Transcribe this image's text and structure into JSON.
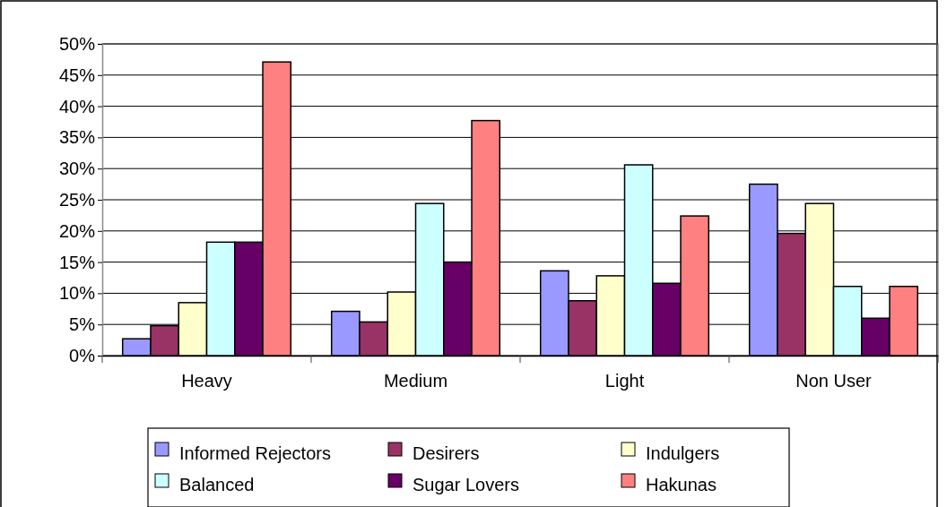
{
  "chart_data": {
    "type": "bar",
    "categories": [
      "Heavy",
      "Medium",
      "Light",
      "Non User"
    ],
    "series": [
      {
        "name": "Informed Rejectors",
        "color": "#9999ff",
        "values": [
          2.7,
          7.1,
          13.6,
          27.5
        ]
      },
      {
        "name": "Desirers",
        "color": "#993366",
        "values": [
          4.8,
          5.4,
          8.8,
          19.6
        ]
      },
      {
        "name": "Indulgers",
        "color": "#ffffcc",
        "values": [
          8.5,
          10.2,
          12.8,
          24.4
        ]
      },
      {
        "name": "Balanced",
        "color": "#ccffff",
        "values": [
          18.2,
          24.4,
          30.6,
          11.1
        ]
      },
      {
        "name": "Sugar Lovers",
        "color": "#660066",
        "values": [
          18.2,
          15.0,
          11.6,
          6.0
        ]
      },
      {
        "name": "Hakunas",
        "color": "#ff8080",
        "values": [
          47.1,
          37.7,
          22.4,
          11.1
        ]
      }
    ],
    "ylim": [
      0,
      50
    ],
    "yticks": [
      {
        "value": 0,
        "label": "0%"
      },
      {
        "value": 5,
        "label": "5%"
      },
      {
        "value": 10,
        "label": "10%"
      },
      {
        "value": 15,
        "label": "15%"
      },
      {
        "value": 20,
        "label": "20%"
      },
      {
        "value": 25,
        "label": "25%"
      },
      {
        "value": 30,
        "label": "30%"
      },
      {
        "value": 35,
        "label": "35%"
      },
      {
        "value": 40,
        "label": "40%"
      },
      {
        "value": 45,
        "label": "45%"
      },
      {
        "value": 50,
        "label": "50%"
      }
    ],
    "grid": "y",
    "legend": "bottom"
  }
}
